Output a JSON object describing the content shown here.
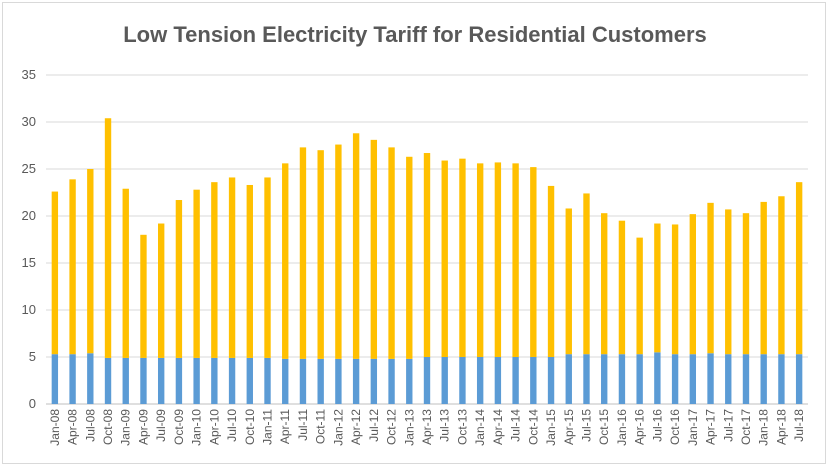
{
  "chart_data": {
    "type": "bar",
    "stacked": true,
    "title": "Low Tension Electricity Tariff for Residential Customers",
    "xlabel": "",
    "ylabel": "",
    "ylim": [
      0,
      35
    ],
    "yticks": [
      0,
      5,
      10,
      15,
      20,
      25,
      30,
      35
    ],
    "grid": true,
    "categories": [
      "Jan-08",
      "Apr-08",
      "Jul-08",
      "Oct-08",
      "Jan-09",
      "Apr-09",
      "Jul-09",
      "Oct-09",
      "Jan-10",
      "Apr-10",
      "Jul-10",
      "Oct-10",
      "Jan-11",
      "Apr-11",
      "Jul-11",
      "Oct-11",
      "Jan-12",
      "Apr-12",
      "Jul-12",
      "Oct-12",
      "Jan-13",
      "Apr-13",
      "Jul-13",
      "Oct-13",
      "Jan-14",
      "Apr-14",
      "Jul-14",
      "Oct-14",
      "Jan-15",
      "Apr-15",
      "Jul-15",
      "Oct-15",
      "Jan-16",
      "Apr-16",
      "Jul-16",
      "Oct-16",
      "Jan-17",
      "Apr-17",
      "Jul-17",
      "Oct-17",
      "Jan-18",
      "Apr-18",
      "Jul-18"
    ],
    "series": [
      {
        "color": "#5b9bd5",
        "values": [
          5.3,
          5.3,
          5.4,
          4.9,
          4.9,
          4.9,
          4.9,
          4.9,
          4.9,
          4.9,
          4.9,
          4.9,
          4.9,
          4.8,
          4.8,
          4.8,
          4.8,
          4.8,
          4.8,
          4.8,
          4.8,
          5.0,
          5.0,
          5.0,
          5.0,
          5.0,
          5.0,
          5.0,
          5.0,
          5.3,
          5.3,
          5.3,
          5.3,
          5.3,
          5.5,
          5.3,
          5.3,
          5.4,
          5.3,
          5.3,
          5.3,
          5.3,
          5.3
        ]
      },
      {
        "color": "#ffc000",
        "values": [
          17.3,
          18.6,
          19.6,
          25.5,
          18.0,
          13.1,
          14.3,
          16.8,
          17.9,
          18.7,
          19.2,
          18.4,
          19.2,
          20.8,
          22.5,
          22.2,
          22.8,
          24.0,
          23.3,
          22.5,
          21.5,
          21.7,
          20.9,
          21.1,
          20.6,
          20.7,
          20.6,
          20.2,
          18.2,
          15.5,
          17.1,
          15.0,
          14.2,
          12.4,
          13.7,
          13.8,
          14.9,
          16.0,
          15.4,
          15.0,
          16.2,
          16.8,
          18.3
        ]
      }
    ]
  }
}
